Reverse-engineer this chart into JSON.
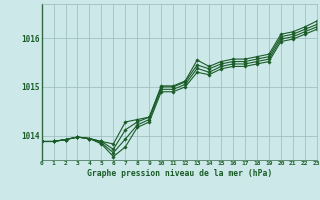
{
  "title": "Graphe pression niveau de la mer (hPa)",
  "background_color": "#cce8e8",
  "grid_color": "#99bbbb",
  "line_color": "#1a5c28",
  "xlim": [
    0,
    23
  ],
  "ylim": [
    1013.5,
    1016.7
  ],
  "yticks": [
    1014,
    1015,
    1016
  ],
  "xticks": [
    0,
    1,
    2,
    3,
    4,
    5,
    6,
    7,
    8,
    9,
    10,
    11,
    12,
    13,
    14,
    15,
    16,
    17,
    18,
    19,
    20,
    21,
    22,
    23
  ],
  "series": [
    [
      1013.88,
      1013.88,
      1013.92,
      1013.97,
      1013.94,
      1013.88,
      1013.83,
      1014.28,
      1014.33,
      1014.38,
      1015.02,
      1015.02,
      1015.12,
      1015.55,
      1015.42,
      1015.52,
      1015.57,
      1015.57,
      1015.62,
      1015.67,
      1016.08,
      1016.13,
      1016.23,
      1016.35
    ],
    [
      1013.88,
      1013.88,
      1013.92,
      1013.97,
      1013.94,
      1013.88,
      1013.72,
      1014.12,
      1014.28,
      1014.38,
      1015.0,
      1015.0,
      1015.1,
      1015.45,
      1015.37,
      1015.47,
      1015.52,
      1015.52,
      1015.57,
      1015.62,
      1016.03,
      1016.08,
      1016.18,
      1016.28
    ],
    [
      1013.88,
      1013.88,
      1013.92,
      1013.97,
      1013.94,
      1013.85,
      1013.65,
      1013.93,
      1014.22,
      1014.33,
      1014.95,
      1014.95,
      1015.05,
      1015.38,
      1015.3,
      1015.42,
      1015.47,
      1015.47,
      1015.52,
      1015.57,
      1015.98,
      1016.03,
      1016.13,
      1016.23
    ],
    [
      1013.88,
      1013.88,
      1013.92,
      1013.97,
      1013.94,
      1013.83,
      1013.57,
      1013.77,
      1014.17,
      1014.28,
      1014.9,
      1014.9,
      1015.0,
      1015.3,
      1015.25,
      1015.37,
      1015.42,
      1015.42,
      1015.47,
      1015.52,
      1015.93,
      1015.98,
      1016.08,
      1016.18
    ]
  ]
}
